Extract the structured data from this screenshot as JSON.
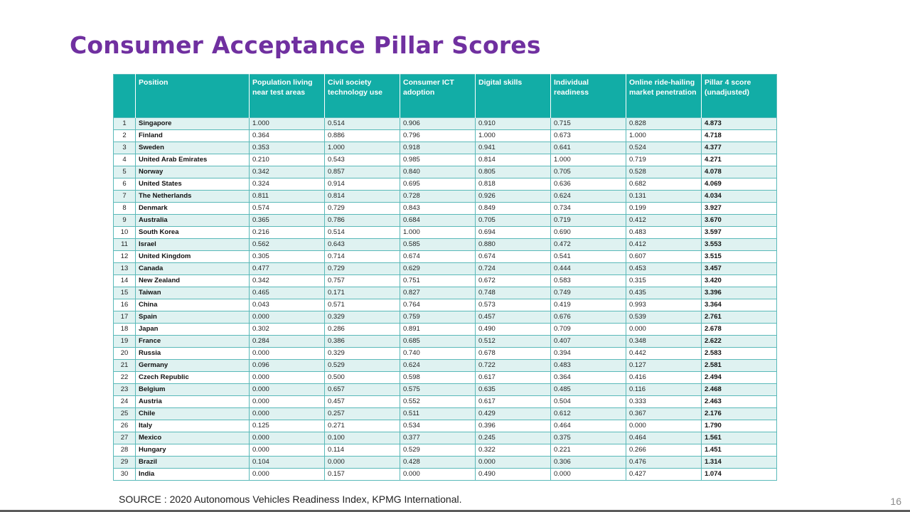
{
  "slide": {
    "title": "Consumer Acceptance Pillar Scores",
    "source": "SOURCE : 2020 Autonomous Vehicles Readiness Index, KPMG International.",
    "page_number": "16"
  },
  "table": {
    "headers": [
      "",
      "Position",
      "Population living near test areas",
      "Civil society technology use",
      "Consumer ICT adoption",
      "Digital skills",
      "Individual readiness",
      "Online ride-hailing market penetration",
      "Pillar 4 score (unadjusted)"
    ],
    "rows": [
      [
        "1",
        "Singapore",
        "1.000",
        "0.514",
        "0.906",
        "0.910",
        "0.715",
        "0.828",
        "4.873"
      ],
      [
        "2",
        "Finland",
        "0.364",
        "0.886",
        "0.796",
        "1.000",
        "0.673",
        "1.000",
        "4.718"
      ],
      [
        "3",
        "Sweden",
        "0.353",
        "1.000",
        "0.918",
        "0.941",
        "0.641",
        "0.524",
        "4.377"
      ],
      [
        "4",
        "United Arab Emirates",
        "0.210",
        "0.543",
        "0.985",
        "0.814",
        "1.000",
        "0.719",
        "4.271"
      ],
      [
        "5",
        "Norway",
        "0.342",
        "0.857",
        "0.840",
        "0.805",
        "0.705",
        "0.528",
        "4.078"
      ],
      [
        "6",
        "United States",
        "0.324",
        "0.914",
        "0.695",
        "0.818",
        "0.636",
        "0.682",
        "4.069"
      ],
      [
        "7",
        "The Netherlands",
        "0.811",
        "0.814",
        "0.728",
        "0.926",
        "0.624",
        "0.131",
        "4.034"
      ],
      [
        "8",
        "Denmark",
        "0.574",
        "0.729",
        "0.843",
        "0.849",
        "0.734",
        "0.199",
        "3.927"
      ],
      [
        "9",
        "Australia",
        "0.365",
        "0.786",
        "0.684",
        "0.705",
        "0.719",
        "0.412",
        "3.670"
      ],
      [
        "10",
        "South Korea",
        "0.216",
        "0.514",
        "1.000",
        "0.694",
        "0.690",
        "0.483",
        "3.597"
      ],
      [
        "11",
        "Israel",
        "0.562",
        "0.643",
        "0.585",
        "0.880",
        "0.472",
        "0.412",
        "3.553"
      ],
      [
        "12",
        "United Kingdom",
        "0.305",
        "0.714",
        "0.674",
        "0.674",
        "0.541",
        "0.607",
        "3.515"
      ],
      [
        "13",
        "Canada",
        "0.477",
        "0.729",
        "0.629",
        "0.724",
        "0.444",
        "0.453",
        "3.457"
      ],
      [
        "14",
        "New Zealand",
        "0.342",
        "0.757",
        "0.751",
        "0.672",
        "0.583",
        "0.315",
        "3.420"
      ],
      [
        "15",
        "Taiwan",
        "0.465",
        "0.171",
        "0.827",
        "0.748",
        "0.749",
        "0.435",
        "3.396"
      ],
      [
        "16",
        "China",
        "0.043",
        "0.571",
        "0.764",
        "0.573",
        "0.419",
        "0.993",
        "3.364"
      ],
      [
        "17",
        "Spain",
        "0.000",
        "0.329",
        "0.759",
        "0.457",
        "0.676",
        "0.539",
        "2.761"
      ],
      [
        "18",
        "Japan",
        "0.302",
        "0.286",
        "0.891",
        "0.490",
        "0.709",
        "0.000",
        "2.678"
      ],
      [
        "19",
        "France",
        "0.284",
        "0.386",
        "0.685",
        "0.512",
        "0.407",
        "0.348",
        "2.622"
      ],
      [
        "20",
        "Russia",
        "0.000",
        "0.329",
        "0.740",
        "0.678",
        "0.394",
        "0.442",
        "2.583"
      ],
      [
        "21",
        "Germany",
        "0.096",
        "0.529",
        "0.624",
        "0.722",
        "0.483",
        "0.127",
        "2.581"
      ],
      [
        "22",
        "Czech Republic",
        "0.000",
        "0.500",
        "0.598",
        "0.617",
        "0.364",
        "0.416",
        "2.494"
      ],
      [
        "23",
        "Belgium",
        "0.000",
        "0.657",
        "0.575",
        "0.635",
        "0.485",
        "0.116",
        "2.468"
      ],
      [
        "24",
        "Austria",
        "0.000",
        "0.457",
        "0.552",
        "0.617",
        "0.504",
        "0.333",
        "2.463"
      ],
      [
        "25",
        "Chile",
        "0.000",
        "0.257",
        "0.511",
        "0.429",
        "0.612",
        "0.367",
        "2.176"
      ],
      [
        "26",
        "Italy",
        "0.125",
        "0.271",
        "0.534",
        "0.396",
        "0.464",
        "0.000",
        "1.790"
      ],
      [
        "27",
        "Mexico",
        "0.000",
        "0.100",
        "0.377",
        "0.245",
        "0.375",
        "0.464",
        "1.561"
      ],
      [
        "28",
        "Hungary",
        "0.000",
        "0.114",
        "0.529",
        "0.322",
        "0.221",
        "0.266",
        "1.451"
      ],
      [
        "29",
        "Brazil",
        "0.104",
        "0.000",
        "0.428",
        "0.000",
        "0.306",
        "0.476",
        "1.314"
      ],
      [
        "30",
        "India",
        "0.000",
        "0.157",
        "0.000",
        "0.490",
        "0.000",
        "0.427",
        "1.074"
      ]
    ]
  },
  "colors": {
    "title": "#7030a0",
    "header_bg": "#12ada6",
    "row_stripe": "#dff2f1",
    "grid": "#5ab9b9"
  }
}
